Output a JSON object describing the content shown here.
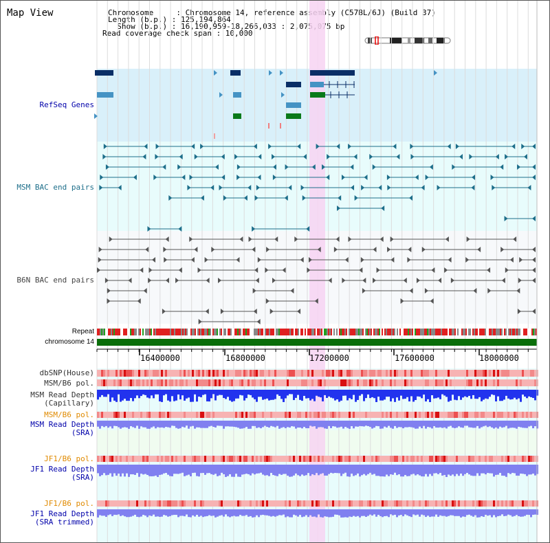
{
  "header": {
    "title": "Map View",
    "info_lines": [
      "Chromosome     : Chromosome 14, reference assembly (C57BL/6J) (Build 37)",
      "Length (b.p.) : 125,194,864",
      "  Show (b.p.) : 16,190,959-18,266,033 : 2,075,075 bp",
      "Read coverage check span : 10,000"
    ]
  },
  "tracks": {
    "refseq": "RefSeq Genes",
    "msm_bac": "MSM BAC end pairs",
    "b6n_bac": "B6N BAC end pairs",
    "repeat": "Repeat",
    "chromosome": "chromosome 14",
    "dbsnp": "dbSNP(House)",
    "msm_b6_pol": "MSM/B6 pol.",
    "msm_depth_cap_1": "MSM Read Depth",
    "msm_depth_cap_2": "(Capillary)",
    "msm_b6_pol_2": "MSM/B6 pol.",
    "msm_depth_sra_1": "MSM Read Depth",
    "msm_depth_sra_2": "(SRA)",
    "jf1_b6_pol": "JF1/B6 pol.",
    "jf1_depth_sra_1": "JF1 Read Depth",
    "jf1_depth_sra_2": "(SRA)",
    "jf1_b6_pol_2": "JF1/B6 pol.",
    "jf1_depth_trim_1": "JF1 Read Depth",
    "jf1_depth_trim_2": "(SRA trimmed)"
  },
  "axis": {
    "ticks": [
      "16400000",
      "16800000",
      "17200000",
      "17600000",
      "18000000"
    ]
  },
  "colors": {
    "refseq_bg": "#d9f0fa",
    "lightcyan_bg": "#e8fcfc",
    "highlight": "#f7d4f2",
    "gene_dark": "#0a2e66",
    "gene_mid": "#4593c4",
    "gene_green": "#0a7a1a",
    "bac_msm": "#1d6e8a",
    "bac_b6n": "#555555",
    "chrom": "#0a6e0a",
    "snp_red": "#ee3333",
    "depth_blue": "#2233ee",
    "depth_light": "#8080f0",
    "label_blue": "#0000aa",
    "label_orange": "#e08a00"
  }
}
